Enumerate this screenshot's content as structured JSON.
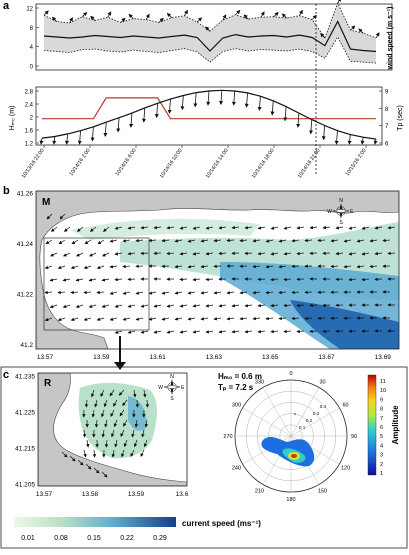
{
  "panels": {
    "a": {
      "letter": "a",
      "top": {
        "ylabel": "wind speed (m s⁻¹)",
        "yticks": [
          "0",
          "4",
          "8",
          "12"
        ],
        "ylim": [
          0,
          12
        ]
      },
      "bottom": {
        "ylabel_left": "Hₘ₀ (m)",
        "ylabel_right": "Tp (sec)",
        "yticks_left": [
          "1.2",
          "1.6",
          "2",
          "2.4",
          "2.8"
        ],
        "yticks_right": [
          "6",
          "7",
          "8",
          "9"
        ],
        "xticks": [
          "10/13/16 22:00",
          "10/14/16 2:00",
          "10/14/16 6:00",
          "10/14/16 10:00",
          "10/14/16 14:00",
          "10/14/16 18:00",
          "10/14/16 22:00",
          "10/15/16 2:00"
        ]
      }
    },
    "b": {
      "letter": "b",
      "label": "M",
      "yticks": [
        "41.26",
        "41.24",
        "41.22",
        "41.2"
      ],
      "xticks": [
        "13.57",
        "13.59",
        "13.61",
        "13.63",
        "13.65",
        "13.67",
        "13.69"
      ]
    },
    "c": {
      "letter": "c",
      "label": "R",
      "yticks": [
        "41.235",
        "41.225",
        "41.215",
        "41.205"
      ],
      "xticks": [
        "13.57",
        "13.58",
        "13.59",
        "13.6"
      ],
      "hm0_text": "Hₘ₀ = 0.6 m",
      "tp_text": "Tₚ = 7.2 s",
      "polar_angles": [
        "0",
        "30",
        "60",
        "90",
        "120",
        "150",
        "180",
        "210",
        "240",
        "270",
        "300",
        "330"
      ],
      "polar_rings": [
        "0.1",
        "0.2",
        "0.3",
        "0.4"
      ],
      "amp_label": "Amplitude",
      "amp_ticks": [
        "1",
        "2",
        "3",
        "4",
        "5",
        "6",
        "7",
        "8",
        "9",
        "10",
        "11"
      ]
    }
  },
  "compass": {
    "n": "N",
    "s": "S",
    "e": "E",
    "w": "W"
  },
  "colorbar": {
    "title": "current speed (ms⁻¹)",
    "ticks": [
      "0.01",
      "0.08",
      "0.15",
      "0.22",
      "0.29"
    ]
  },
  "colors": {
    "land": "#c8c8c8",
    "water": "#ffffff",
    "current_low": "#dff0dc",
    "current_high": "#1a5ea8",
    "tp_line": "#c0392b",
    "fill": "#d9d9d9"
  },
  "series": {
    "wind_mean": [
      6.2,
      6.0,
      5.8,
      6.0,
      6.3,
      6.1,
      5.9,
      6.2,
      6.0,
      5.8,
      6.1,
      6.4,
      5.9,
      3.1,
      5.8,
      6.5,
      6.0,
      6.2,
      6.3,
      6.0,
      6.4,
      5.9,
      4.2,
      9.2,
      3.5,
      3.2,
      3.0
    ],
    "wind_max": [
      10.5,
      9.2,
      8.9,
      10.2,
      9.4,
      10.1,
      9.0,
      9.8,
      9.6,
      9.0,
      10.0,
      10.4,
      9.1,
      7.2,
      9.5,
      10.6,
      9.7,
      10.1,
      10.2,
      9.9,
      10.4,
      9.6,
      5.8,
      13.0,
      7.4,
      6.8,
      5.8
    ],
    "wind_min": [
      3.2,
      3.0,
      2.8,
      3.4,
      3.5,
      3.1,
      2.9,
      3.3,
      3.0,
      2.8,
      3.2,
      3.6,
      2.9,
      0.8,
      3.0,
      3.6,
      3.1,
      3.4,
      3.3,
      3.1,
      3.5,
      3.0,
      1.6,
      6.0,
      1.0,
      0.8,
      0.6
    ],
    "hm0": [
      1.35,
      1.4,
      1.48,
      1.58,
      1.7,
      1.84,
      1.98,
      2.12,
      2.28,
      2.42,
      2.55,
      2.66,
      2.75,
      2.8,
      2.82,
      2.8,
      2.74,
      2.64,
      2.5,
      2.32,
      2.12,
      1.92,
      1.74,
      1.58,
      1.46,
      1.38,
      1.32
    ],
    "tp": [
      7.4,
      7.4,
      7.4,
      7.4,
      7.4,
      8.6,
      8.6,
      8.6,
      8.6,
      8.6,
      7.4,
      7.4,
      7.4,
      7.4,
      7.4,
      7.4,
      7.4,
      7.4,
      7.4,
      7.4,
      7.4,
      7.4,
      7.4,
      7.4,
      7.4,
      7.4,
      7.4
    ]
  }
}
